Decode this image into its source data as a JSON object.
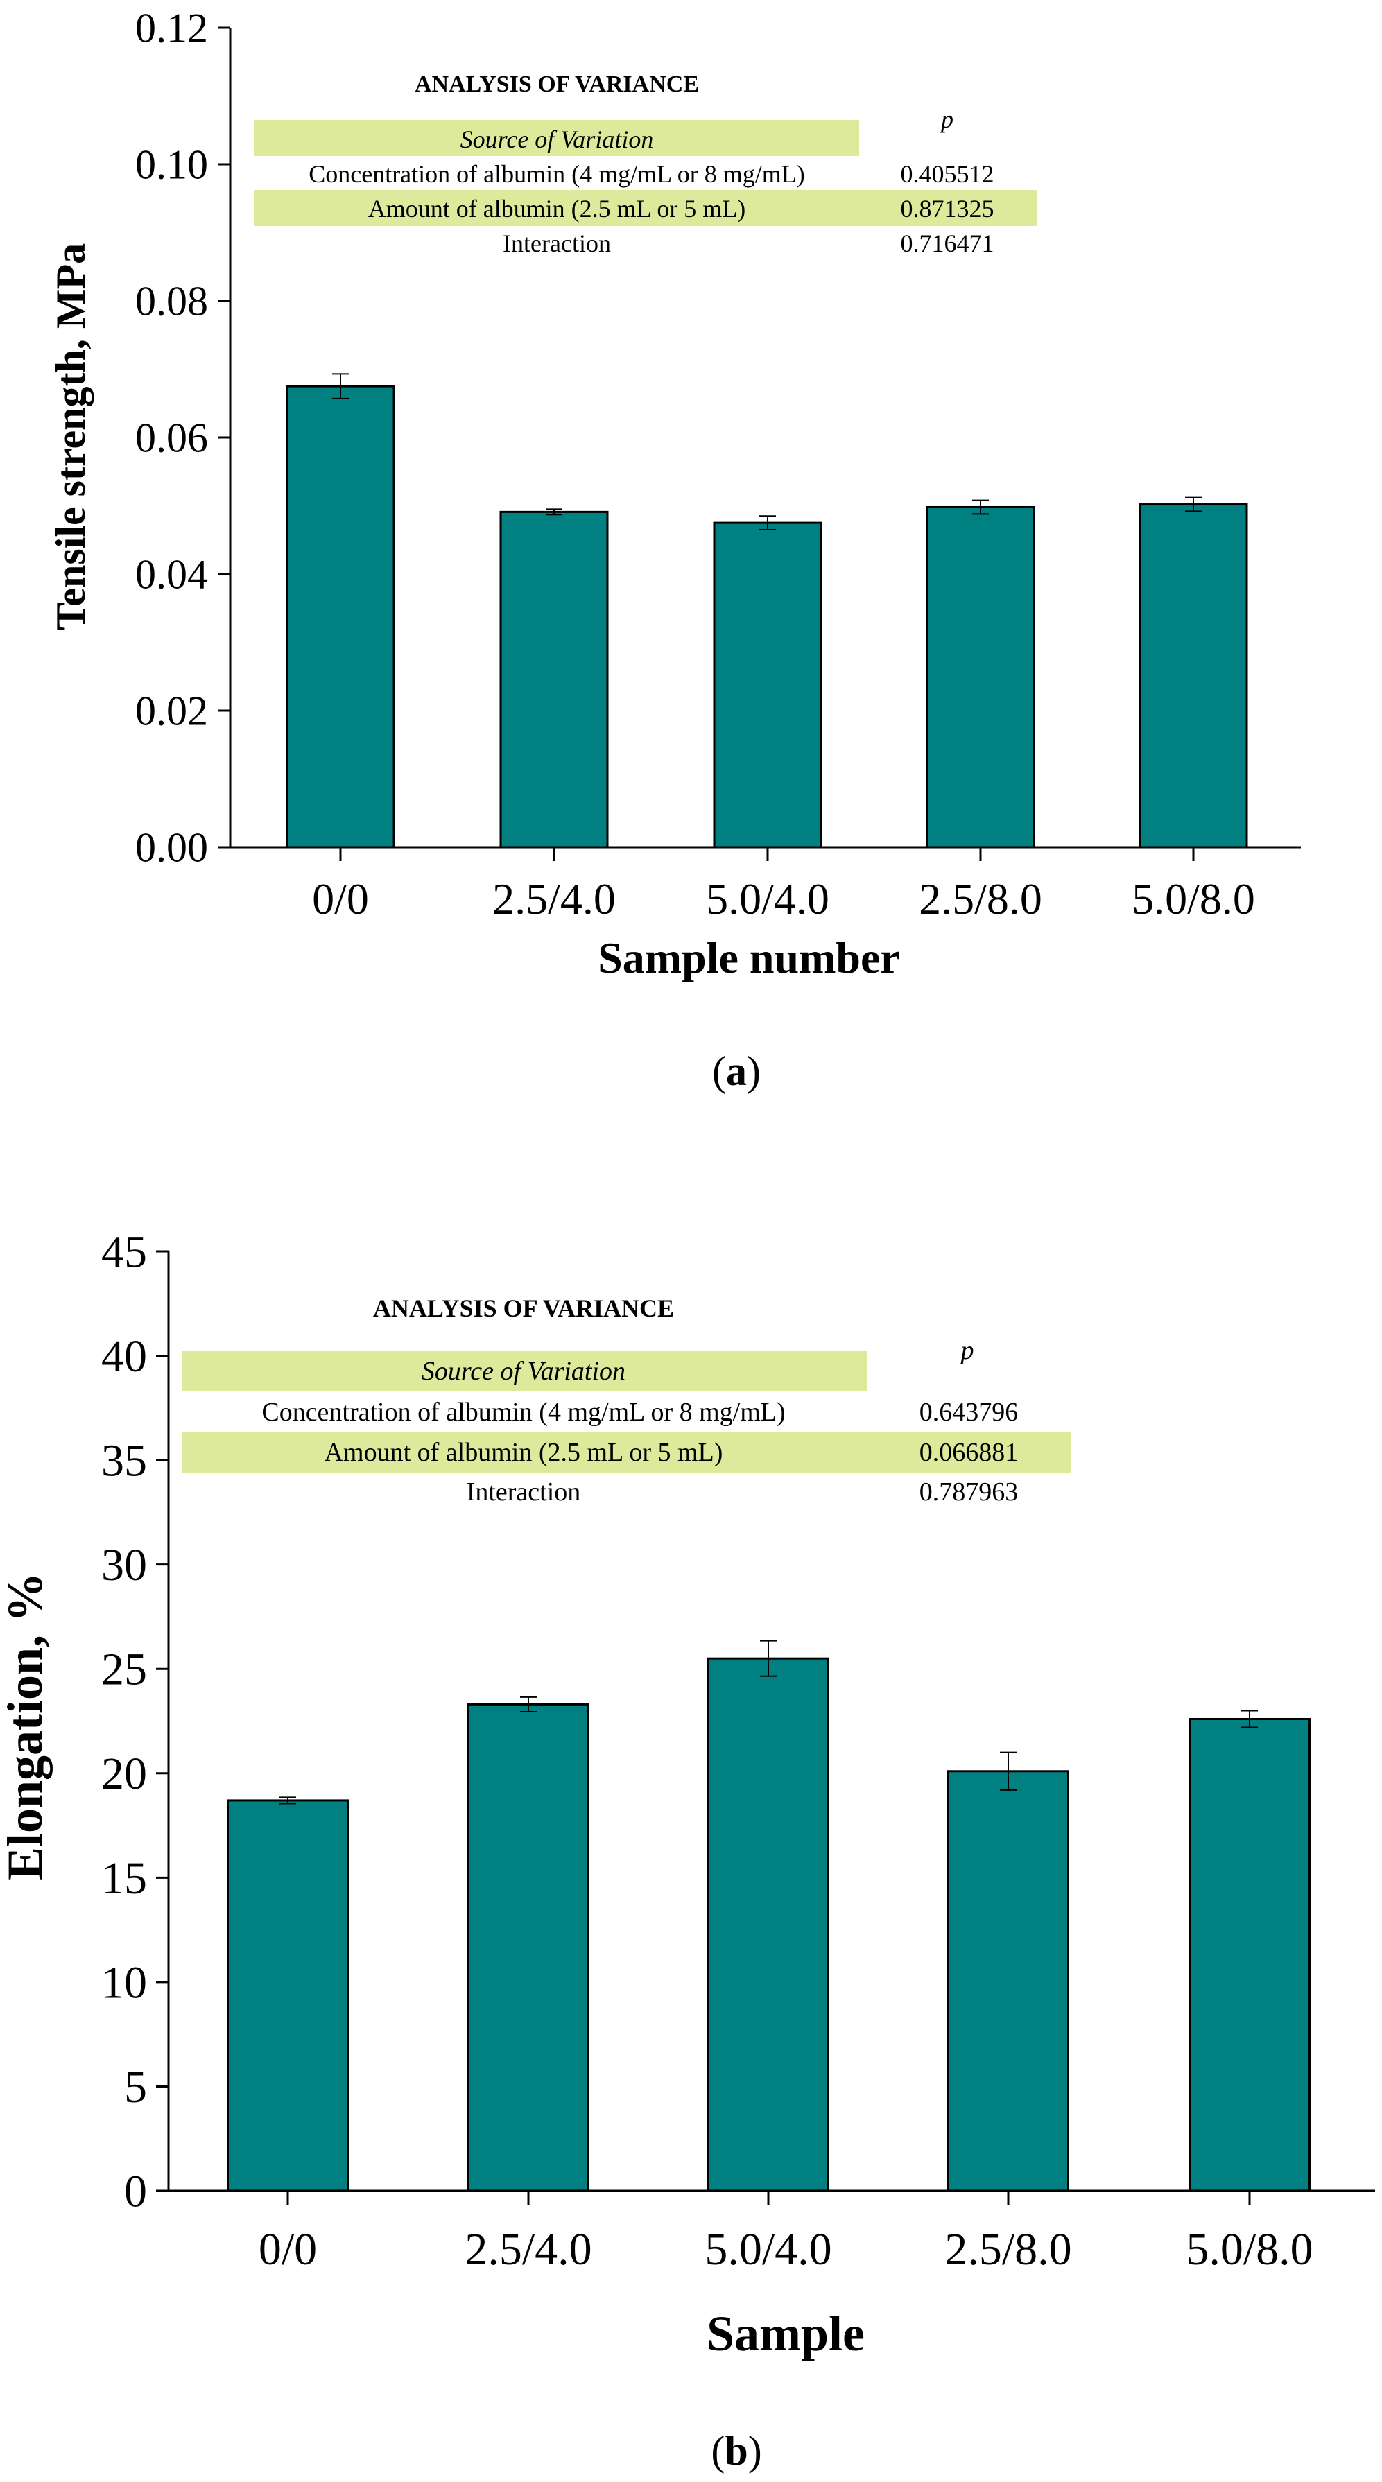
{
  "chart_data": [
    {
      "type": "bar",
      "panel_label": "a",
      "xlabel": "Sample number",
      "ylabel": "Tensile strength, MPa",
      "categories": [
        "0/0",
        "2.5/4.0",
        "5.0/4.0",
        "2.5/8.0",
        "5.0/8.0"
      ],
      "values": [
        0.0675,
        0.0491,
        0.0475,
        0.0498,
        0.0502
      ],
      "errors": [
        0.0018,
        0.0004,
        0.001,
        0.001,
        0.001
      ],
      "yticks": [
        "0.00",
        "0.02",
        "0.04",
        "0.06",
        "0.08",
        "0.10",
        "0.12"
      ],
      "ylim": [
        0,
        0.12
      ],
      "grid": false,
      "bar_color": "#008080",
      "anova": {
        "title": "ANALYSIS OF VARIANCE",
        "header_source": "Source of Variation",
        "header_p": "p",
        "highlight_color": "#dde99b",
        "rows": [
          {
            "source": "Concentration of albumin (4 mg/mL or 8 mg/mL)",
            "p": "0.405512"
          },
          {
            "source": "Amount of albumin (2.5 mL or 5 mL)",
            "p": "0.871325"
          },
          {
            "source": "Interaction",
            "p": "0.716471"
          }
        ]
      }
    },
    {
      "type": "bar",
      "panel_label": "b",
      "xlabel": "Sample",
      "ylabel": "Elongation, %",
      "categories": [
        "0/0",
        "2.5/4.0",
        "5.0/4.0",
        "2.5/8.0",
        "5.0/8.0"
      ],
      "values": [
        18.7,
        23.3,
        25.5,
        20.1,
        22.6
      ],
      "errors": [
        0.15,
        0.35,
        0.85,
        0.9,
        0.4
      ],
      "yticks": [
        "0",
        "5",
        "10",
        "15",
        "20",
        "25",
        "30",
        "35",
        "40",
        "45"
      ],
      "ylim": [
        0,
        45
      ],
      "grid": false,
      "bar_color": "#008080",
      "anova": {
        "title": "ANALYSIS OF VARIANCE",
        "header_source": "Source of Variation",
        "header_p": "p",
        "highlight_color": "#dde99b",
        "rows": [
          {
            "source": "Concentration of albumin (4 mg/mL or 8 mg/mL)",
            "p": "0.643796"
          },
          {
            "source": "Amount of albumin (2.5 mL or 5 mL)",
            "p": "0.066881"
          },
          {
            "source": "Interaction",
            "p": "0.787963"
          }
        ]
      }
    }
  ]
}
